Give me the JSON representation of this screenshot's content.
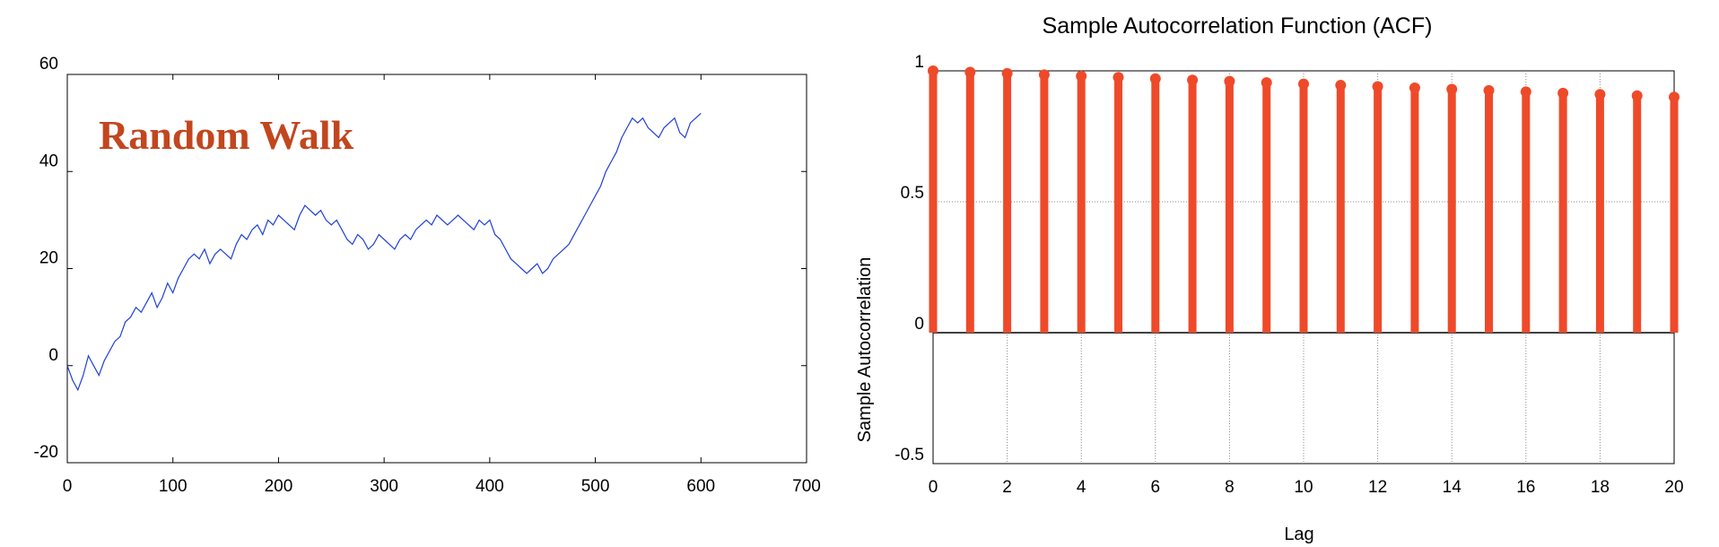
{
  "colors": {
    "walk_line": "#1f3fd6",
    "acf_stem": "#ee4a2a",
    "annotation": "#c2461e",
    "axis": "#000000",
    "grid": "#888888"
  },
  "chart_data": [
    {
      "type": "line",
      "annotation": "Random Walk",
      "xlim": [
        0,
        700
      ],
      "ylim": [
        -20,
        60
      ],
      "xticks": [
        "0",
        "100",
        "200",
        "300",
        "400",
        "500",
        "600",
        "700"
      ],
      "yticks": [
        "60",
        "40",
        "20",
        "0",
        "-20"
      ],
      "grid": false,
      "series": [
        {
          "x": [
            0,
            5,
            10,
            15,
            20,
            25,
            30,
            35,
            40,
            45,
            50,
            55,
            60,
            65,
            70,
            75,
            80,
            85,
            90,
            95,
            100,
            105,
            110,
            115,
            120,
            125,
            130,
            135,
            140,
            145,
            150,
            155,
            160,
            165,
            170,
            175,
            180,
            185,
            190,
            195,
            200,
            205,
            210,
            215,
            220,
            225,
            230,
            235,
            240,
            245,
            250,
            255,
            260,
            265,
            270,
            275,
            280,
            285,
            290,
            295,
            300,
            305,
            310,
            315,
            320,
            325,
            330,
            335,
            340,
            345,
            350,
            355,
            360,
            365,
            370,
            375,
            380,
            385,
            390,
            395,
            400,
            405,
            410,
            415,
            420,
            425,
            430,
            435,
            440,
            445,
            450,
            455,
            460,
            465,
            470,
            475,
            480,
            485,
            490,
            495,
            500,
            505,
            510,
            515,
            520,
            525,
            530,
            535,
            540,
            545,
            550,
            555,
            560,
            565,
            570,
            575,
            580,
            585,
            590,
            595,
            600
          ],
          "y": [
            0,
            -3,
            -5,
            -2,
            2,
            0,
            -2,
            1,
            3,
            5,
            6,
            9,
            10,
            12,
            11,
            13,
            15,
            12,
            14,
            17,
            15,
            18,
            20,
            22,
            23,
            22,
            24,
            21,
            23,
            24,
            23,
            22,
            25,
            27,
            26,
            28,
            29,
            27,
            30,
            29,
            31,
            30,
            29,
            28,
            31,
            33,
            32,
            31,
            32,
            30,
            29,
            30,
            28,
            26,
            25,
            27,
            26,
            24,
            25,
            27,
            26,
            25,
            24,
            26,
            27,
            26,
            28,
            29,
            30,
            29,
            31,
            30,
            29,
            30,
            31,
            30,
            29,
            28,
            30,
            29,
            30,
            27,
            26,
            24,
            22,
            21,
            20,
            19,
            20,
            21,
            19,
            20,
            22,
            23,
            24,
            25,
            27,
            29,
            31,
            33,
            35,
            37,
            40,
            42,
            44,
            47,
            49,
            51,
            50,
            51,
            49,
            48,
            47,
            49,
            50,
            51,
            48,
            47,
            50,
            51,
            52
          ]
        }
      ]
    },
    {
      "type": "bar",
      "subtype": "stem",
      "title": "Sample Autocorrelation Function (ACF)",
      "xlabel": "Lag",
      "ylabel": "Sample Autocorrelation",
      "xlim": [
        0,
        20
      ],
      "ylim": [
        -0.5,
        1
      ],
      "xticks": [
        "0",
        "2",
        "4",
        "6",
        "8",
        "10",
        "12",
        "14",
        "16",
        "18",
        "20"
      ],
      "yticks": [
        "1",
        "0.5",
        "0",
        "-0.5"
      ],
      "grid": true,
      "x": [
        0,
        1,
        2,
        3,
        4,
        5,
        6,
        7,
        8,
        9,
        10,
        11,
        12,
        13,
        14,
        15,
        16,
        17,
        18,
        19,
        20
      ],
      "values": [
        1.0,
        0.995,
        0.99,
        0.985,
        0.98,
        0.975,
        0.97,
        0.965,
        0.96,
        0.955,
        0.95,
        0.945,
        0.94,
        0.935,
        0.93,
        0.925,
        0.92,
        0.915,
        0.91,
        0.905,
        0.9
      ]
    }
  ]
}
